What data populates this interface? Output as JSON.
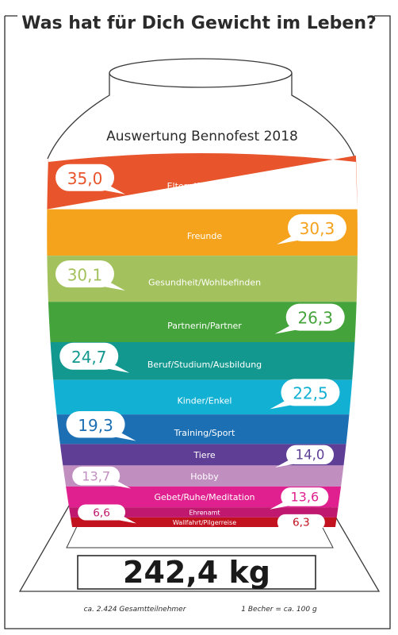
{
  "page": {
    "title": "Was hat für Dich Gewicht im Leben?",
    "subtitle": "Auswertung Bennofest 2018",
    "total": "242,4 kg",
    "participants": "ca. 2.424 Gesamtteilnehmer",
    "unit_note": "1 Becher = ca. 100 g"
  },
  "colors": {
    "ink": "#2b2b2b",
    "jar_outline": "#3a3a3a"
  },
  "chart_data": {
    "type": "bar",
    "title": "Auswertung Bennofest 2018",
    "categories": [
      "Eltern/Großeltern",
      "Freunde",
      "Gesundheit/Wohlbefinden",
      "Partnerin/Partner",
      "Beruf/Studium/Ausbildung",
      "Kinder/Enkel",
      "Training/Sport",
      "Tiere",
      "Hobby",
      "Gebet/Ruhe/Meditation",
      "Ehrenamt",
      "Wallfahrt/Pilgerreise"
    ],
    "values": [
      35.0,
      30.3,
      30.1,
      26.3,
      24.7,
      22.5,
      19.3,
      14.0,
      13.7,
      13.6,
      6.6,
      6.3
    ],
    "value_labels": [
      "35,0",
      "30,3",
      "30,1",
      "26,3",
      "24,7",
      "22,5",
      "19,3",
      "14,0",
      "13,7",
      "13,6",
      "6,6",
      "6,3"
    ],
    "colors": [
      "#e8542b",
      "#f5a21c",
      "#a3c15c",
      "#44a33a",
      "#13988f",
      "#12b1d4",
      "#1d6fb4",
      "#5f3f96",
      "#c08fc0",
      "#e0208f",
      "#c0186f",
      "#c2111f"
    ],
    "bubble_side": [
      "left",
      "right",
      "left",
      "right",
      "left",
      "right",
      "left",
      "right",
      "left",
      "right",
      "left",
      "right"
    ]
  }
}
